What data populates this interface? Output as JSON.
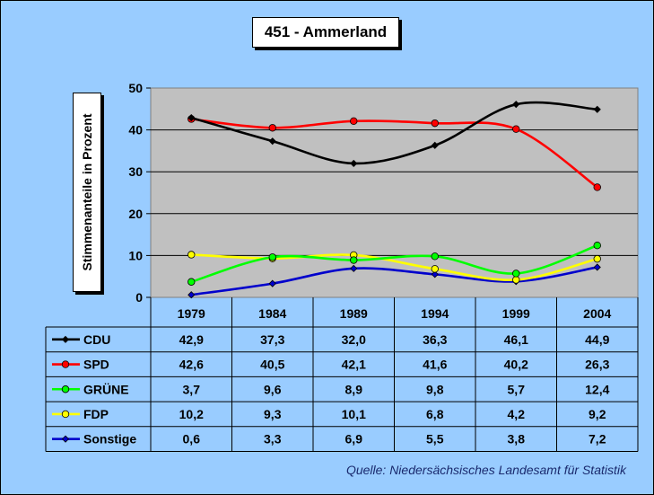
{
  "chart_data": {
    "type": "line",
    "title": "451 - Ammerland",
    "ylabel": "Stimmenanteile in Prozent",
    "xlabel": "",
    "ylim": [
      0,
      50
    ],
    "yticks": [
      0,
      10,
      20,
      30,
      40,
      50
    ],
    "categories": [
      "1979",
      "1984",
      "1989",
      "1994",
      "1999",
      "2004"
    ],
    "legend_position": "bottom table",
    "grid": true,
    "series": [
      {
        "name": "CDU",
        "values": [
          42.9,
          37.3,
          32.0,
          36.3,
          46.1,
          44.9
        ],
        "labels": [
          "42,9",
          "37,3",
          "32,0",
          "36,3",
          "46,1",
          "44,9"
        ],
        "color": "#000000",
        "marker": "diamond",
        "marker_fill": "#000000"
      },
      {
        "name": "SPD",
        "values": [
          42.6,
          40.5,
          42.1,
          41.6,
          40.2,
          26.3
        ],
        "labels": [
          "42,6",
          "40,5",
          "42,1",
          "41,6",
          "40,2",
          "26,3"
        ],
        "color": "#ff0000",
        "marker": "circle",
        "marker_fill": "#ff0000"
      },
      {
        "name": "GRÜNE",
        "values": [
          3.7,
          9.6,
          8.9,
          9.8,
          5.7,
          12.4
        ],
        "labels": [
          "3,7",
          "9,6",
          "8,9",
          "9,8",
          "5,7",
          "12,4"
        ],
        "color": "#00ff00",
        "marker": "circle",
        "marker_fill": "#00ff00"
      },
      {
        "name": "FDP",
        "values": [
          10.2,
          9.3,
          10.1,
          6.8,
          4.2,
          9.2
        ],
        "labels": [
          "10,2",
          "9,3",
          "10,1",
          "6,8",
          "4,2",
          "9,2"
        ],
        "color": "#ffff00",
        "marker": "circle",
        "marker_fill": "#ffff00"
      },
      {
        "name": "Sonstige",
        "values": [
          0.6,
          3.3,
          6.9,
          5.5,
          3.8,
          7.2
        ],
        "labels": [
          "0,6",
          "3,3",
          "6,9",
          "5,5",
          "3,8",
          "7,2"
        ],
        "color": "#0000cc",
        "marker": "diamond",
        "marker_fill": "#0000cc"
      }
    ],
    "source": "Quelle: Niedersächsisches Landesamt für Statistik"
  }
}
